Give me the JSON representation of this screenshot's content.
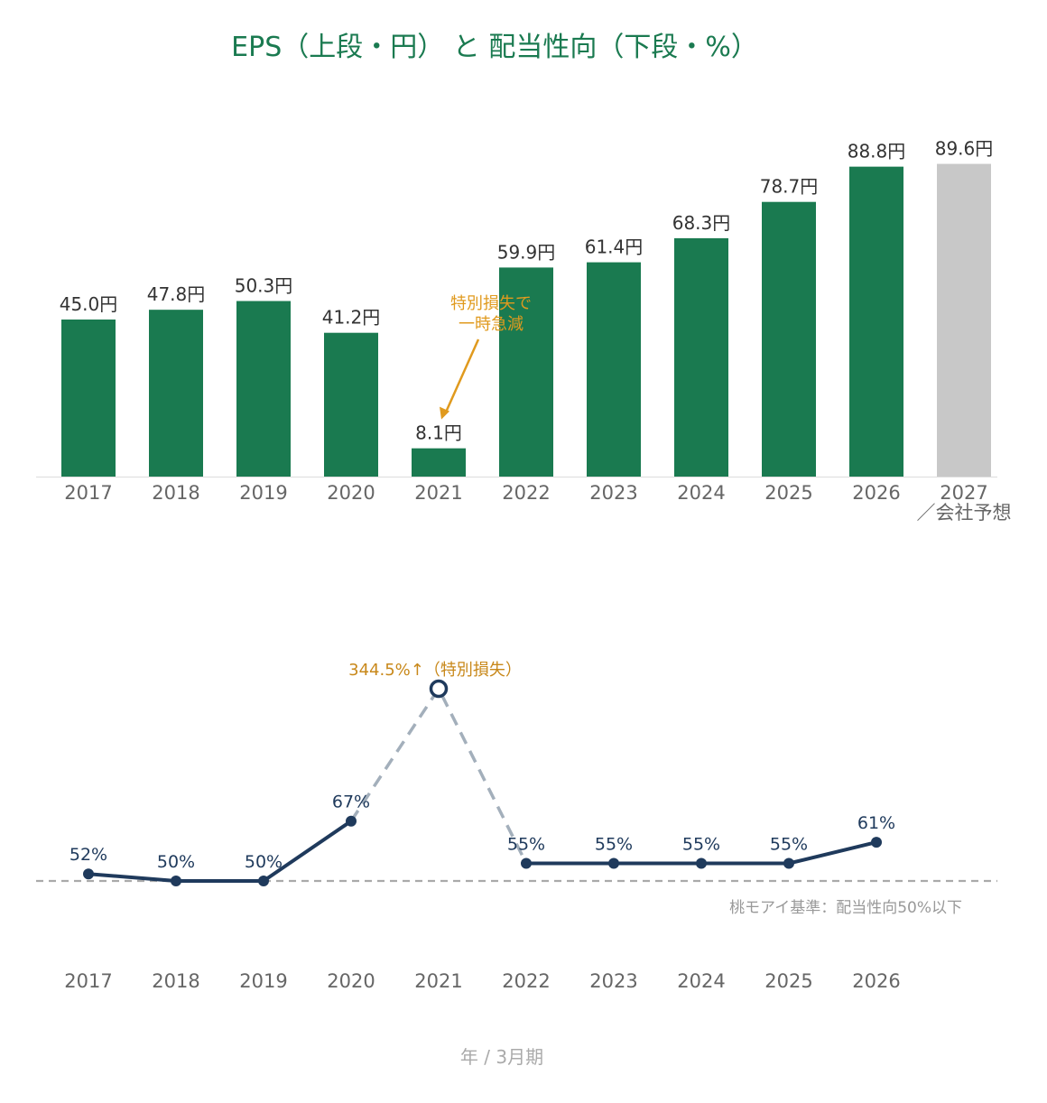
{
  "title": "EPS（上段・円） と 配当性向（下段・%）",
  "x_unit_label": "年 / 3月期",
  "colors": {
    "title": "#1a7a50",
    "bar_actual": "#1a7a50",
    "bar_forecast": "#c8c8c8",
    "payout_line": "#1f3a5c",
    "payout_dashed": "#a3afbb",
    "annotation": "#e09a1e",
    "baseline": "#aaaaaa"
  },
  "chart_data": [
    {
      "type": "bar",
      "title": "EPS（上段・円）",
      "categories": [
        "2017",
        "2018",
        "2019",
        "2020",
        "2021",
        "2022",
        "2023",
        "2024",
        "2025",
        "2026",
        "2027"
      ],
      "category_sublabels": [
        "",
        "",
        "",
        "",
        "",
        "",
        "",
        "",
        "",
        "",
        "／会社予想"
      ],
      "values": [
        45.0,
        47.8,
        50.3,
        41.2,
        8.1,
        59.9,
        61.4,
        68.3,
        78.7,
        88.8,
        89.6
      ],
      "data_labels": [
        "45.0円",
        "47.8円",
        "50.3円",
        "41.2円",
        "8.1円",
        "59.9円",
        "61.4円",
        "68.3円",
        "78.7円",
        "88.8円",
        "89.6円"
      ],
      "forecast": [
        false,
        false,
        false,
        false,
        false,
        false,
        false,
        false,
        false,
        false,
        true
      ],
      "unit": "円",
      "ylim": [
        0,
        90
      ],
      "annotation": {
        "target": "2021",
        "lines": [
          "特別損失で",
          "一時急減"
        ]
      },
      "grid": false
    },
    {
      "type": "line",
      "title": "配当性向（下段・%）",
      "categories": [
        "2017",
        "2018",
        "2019",
        "2020",
        "2021",
        "2022",
        "2023",
        "2024",
        "2025",
        "2026"
      ],
      "values": [
        52,
        50,
        50,
        67,
        344.5,
        55,
        55,
        55,
        55,
        61
      ],
      "data_labels": [
        "52%",
        "50%",
        "50%",
        "67%",
        "",
        "55%",
        "55%",
        "55%",
        "55%",
        "61%"
      ],
      "outlier": {
        "category": "2021",
        "value": 344.5,
        "label": "344.5%↑（特別損失）",
        "axis_broken": true
      },
      "reference_line": {
        "value": 50,
        "label": "桃モアイ基準：配当性向50%以下"
      },
      "grid": false
    }
  ]
}
